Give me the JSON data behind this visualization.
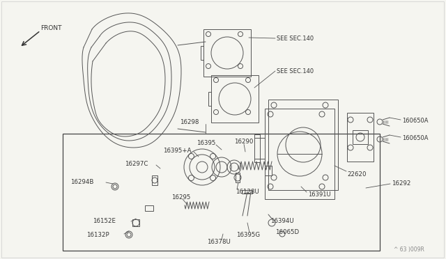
{
  "bg_color": "#f5f5f0",
  "lc": "#555555",
  "figure_code": "^ 63 )009R",
  "labels": {
    "SEE_SEC140_top": "SEE SEC.140",
    "SEE_SEC140_bot": "SEE SEC.140",
    "16298": "16298",
    "16290": "16290",
    "16395": "16395",
    "16395A": "16395+A",
    "16297C": "16297C",
    "16294B": "16294B",
    "16295": "16295",
    "16152E": "16152E",
    "16132P": "16132P",
    "16378U": "16378U",
    "16395G": "16395G",
    "16128U": "16128U",
    "16394U": "16394U",
    "16065D": "16065D",
    "16391U": "16391U",
    "22620": "22620",
    "16292": "16292",
    "16065QA_top": "160650A",
    "16065QA_bot": "160650A",
    "FRONT": "FRONT"
  }
}
